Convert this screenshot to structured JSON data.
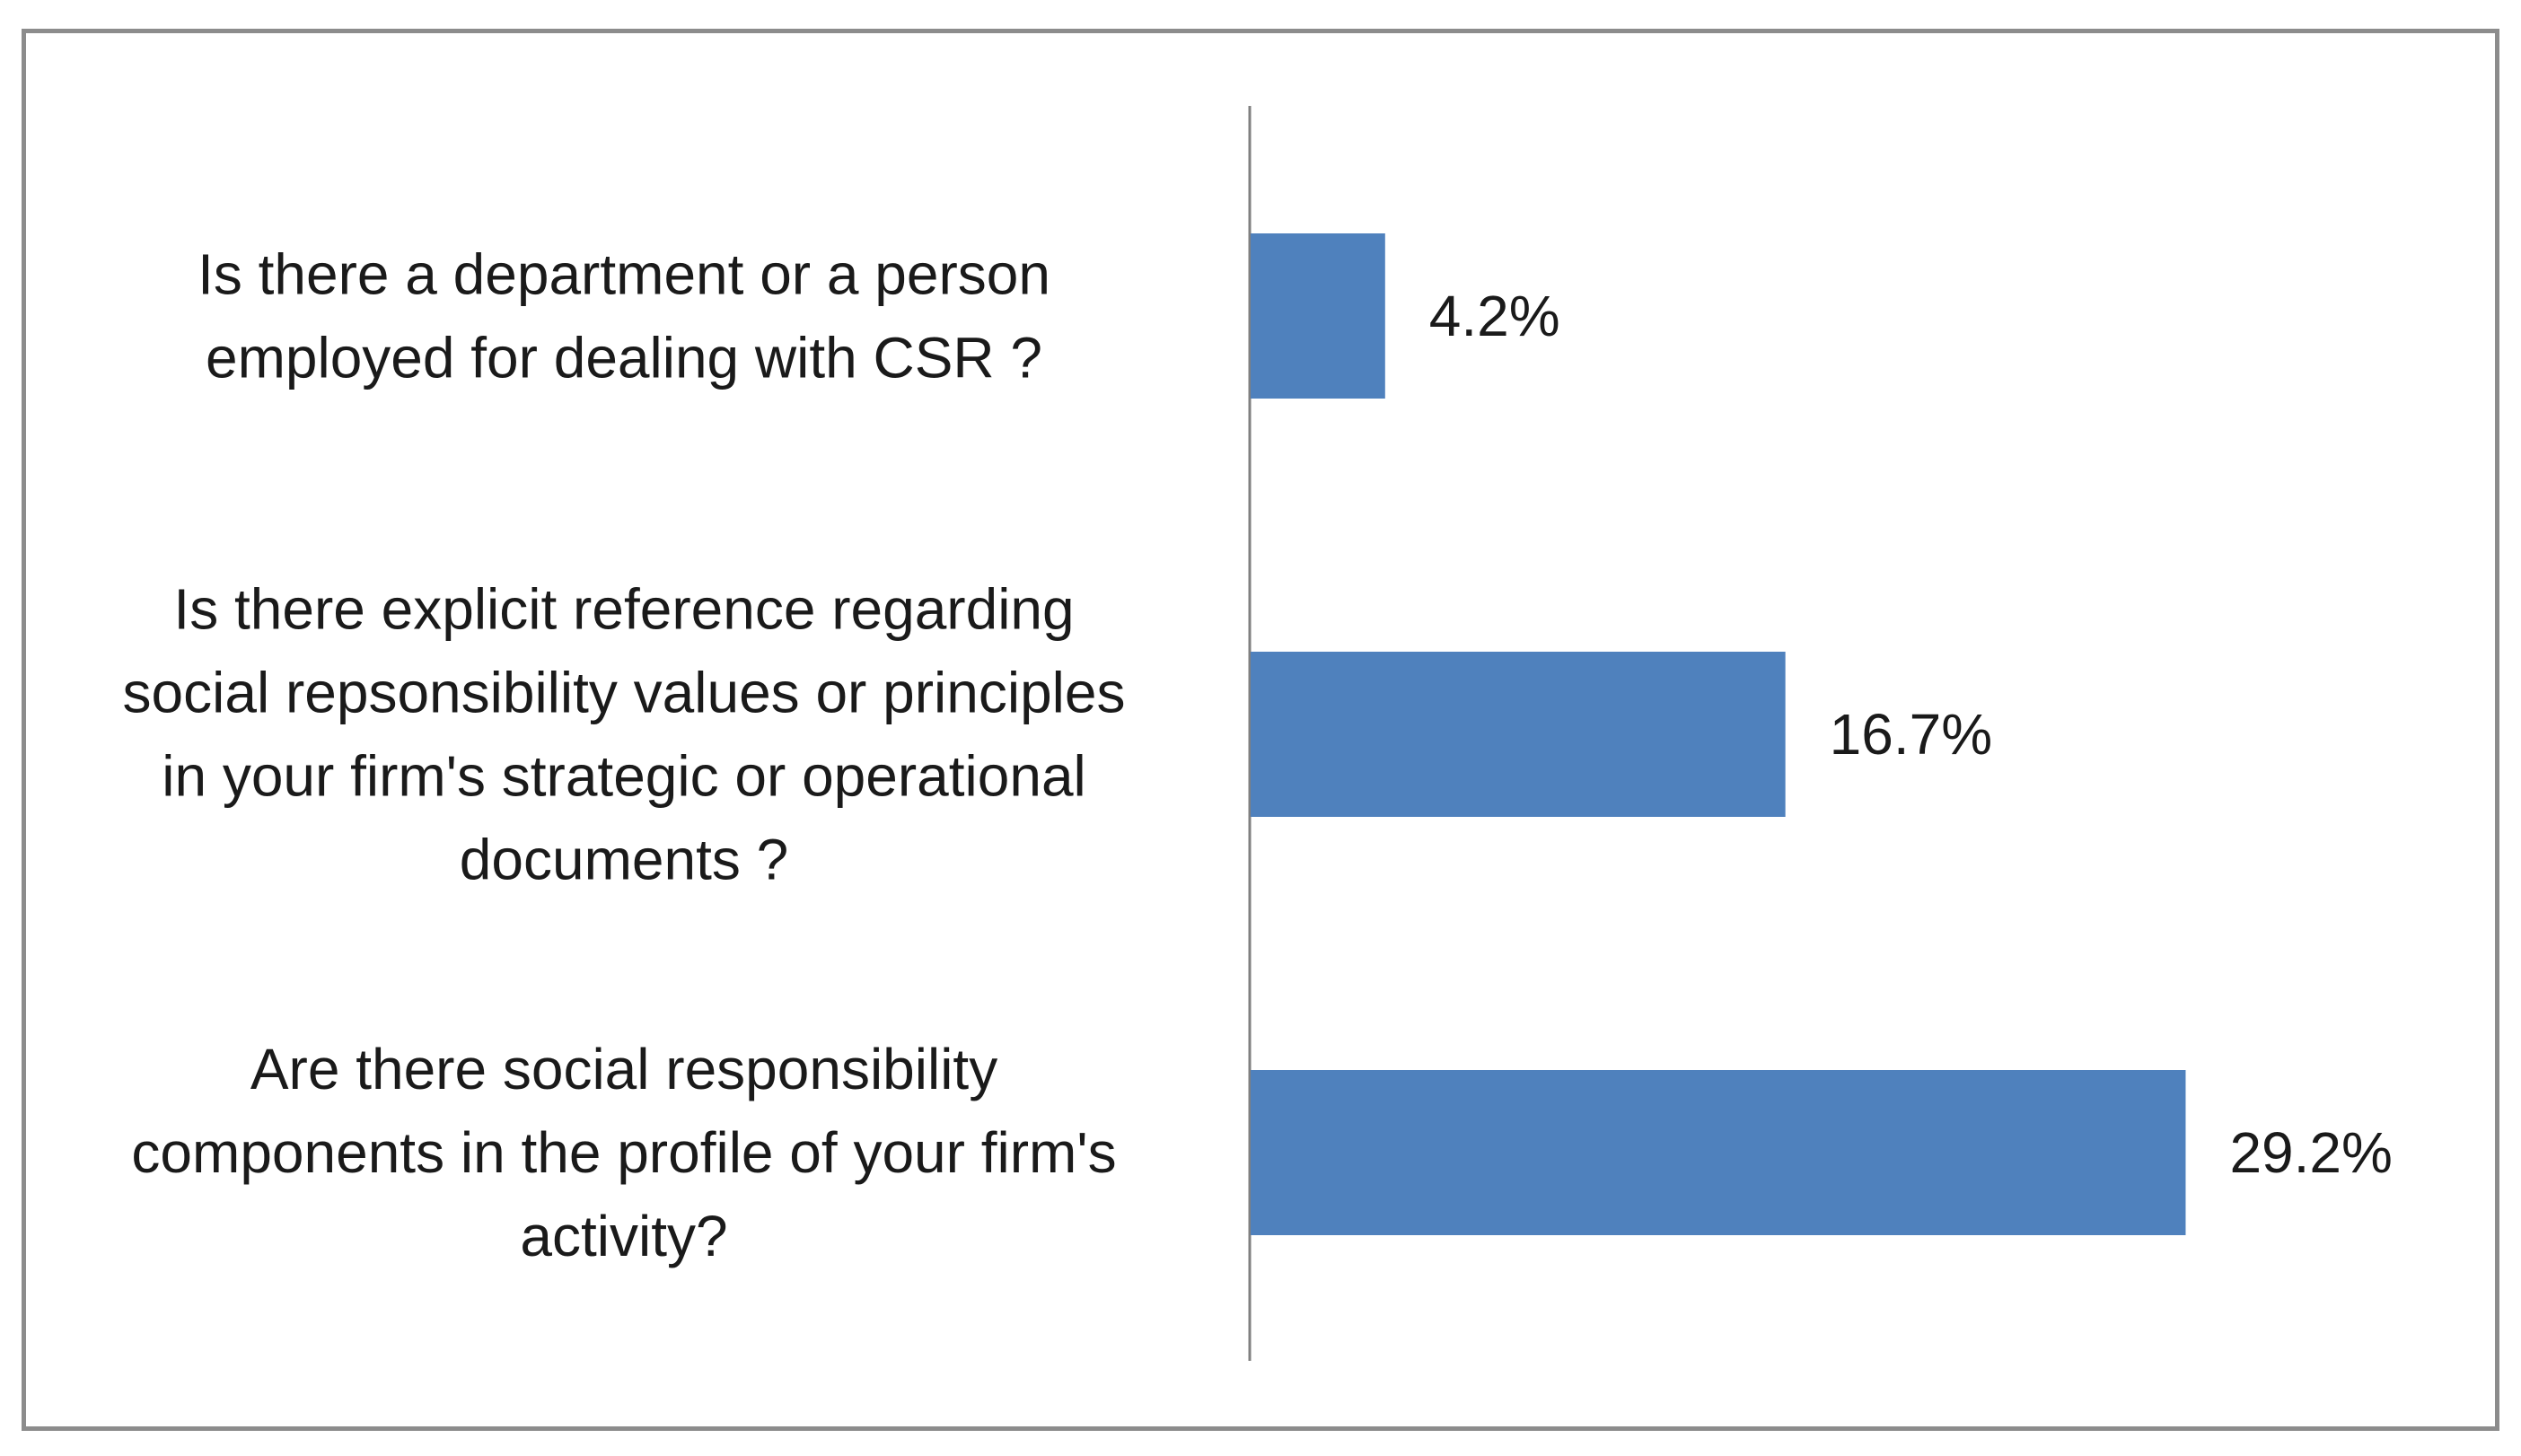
{
  "chart_data": {
    "type": "bar",
    "orientation": "horizontal",
    "categories": [
      [
        "Is there a department or a person",
        "employed for dealing with CSR ?"
      ],
      [
        "Is there explicit reference regarding",
        "social repsonsibility values or principles",
        "in your firm's strategic or operational",
        "documents ?"
      ],
      [
        "Are there social responsibility",
        "components in the profile of your firm's",
        "activity?"
      ]
    ],
    "values": [
      4.2,
      16.7,
      29.2
    ],
    "value_labels": [
      "4.2%",
      "16.7%",
      "29.2%"
    ],
    "xlim": [
      0,
      33
    ],
    "bar_color": "#4f81bd",
    "axis_color": "#808080",
    "frame_color": "#8c8c8c",
    "grid": false,
    "legend": "none"
  }
}
